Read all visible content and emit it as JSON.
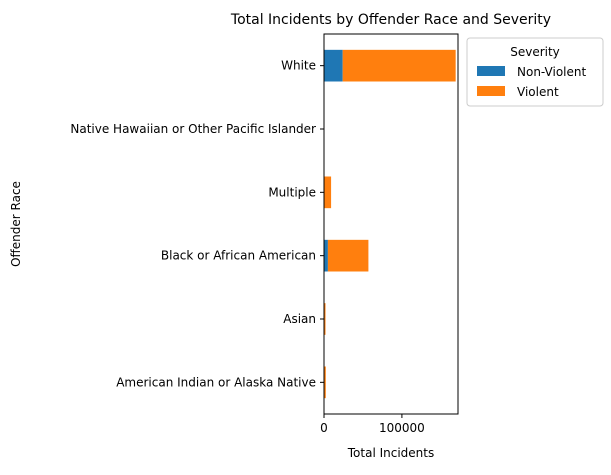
{
  "chart_data": {
    "type": "bar",
    "orientation": "horizontal",
    "stacked": true,
    "title": "Total Incidents by Offender Race and Severity",
    "xlabel": "Total Incidents",
    "ylabel": "Offender Race",
    "categories": [
      "American Indian or Alaska Native",
      "Asian",
      "Black or African American",
      "Multiple",
      "Native Hawaiian or Other Pacific Islander",
      "White"
    ],
    "series": [
      {
        "name": "Non-Violent",
        "color": "#1f77b4",
        "values": [
          300,
          250,
          5000,
          600,
          50,
          24000
        ]
      },
      {
        "name": "Violent",
        "color": "#ff7f0e",
        "values": [
          2000,
          1700,
          52000,
          8500,
          300,
          145000
        ]
      }
    ],
    "xlim": [
      0,
      172000
    ],
    "xticks": [
      0,
      100000
    ],
    "xtick_labels": [
      "0",
      "100000"
    ],
    "legend": {
      "title": "Severity",
      "position": "outside upper right"
    },
    "grid": false
  }
}
